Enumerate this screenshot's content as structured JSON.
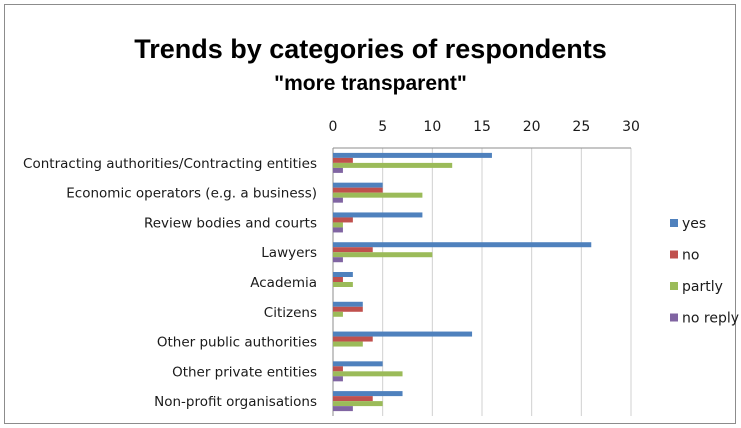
{
  "chart_data": {
    "type": "bar",
    "orientation": "horizontal",
    "title": "Trends by categories of respondents",
    "subtitle": "\"more transparent\"",
    "categories": [
      "Contracting authorities/Contracting entities",
      "Economic operators (e.g. a business)",
      "Review bodies and courts",
      "Lawyers",
      "Academia",
      "Citizens",
      "Other public authorities",
      "Other private entities",
      "Non-profit organisations"
    ],
    "series": [
      {
        "name": "yes",
        "color": "#4f81bd",
        "values": [
          16,
          5,
          9,
          26,
          2,
          3,
          14,
          5,
          7
        ]
      },
      {
        "name": "no",
        "color": "#c0504d",
        "values": [
          2,
          5,
          2,
          4,
          1,
          3,
          4,
          1,
          4
        ]
      },
      {
        "name": "partly",
        "color": "#9bbb59",
        "values": [
          12,
          9,
          1,
          10,
          2,
          1,
          3,
          7,
          5
        ]
      },
      {
        "name": "no reply",
        "color": "#8064a2",
        "values": [
          1,
          1,
          1,
          1,
          0,
          0,
          0,
          1,
          2
        ]
      }
    ],
    "xlim": [
      0,
      30
    ],
    "xticks": [
      0,
      5,
      10,
      15,
      20,
      25,
      30
    ],
    "grid": true,
    "legend_position": "right",
    "axis_position": "top"
  }
}
